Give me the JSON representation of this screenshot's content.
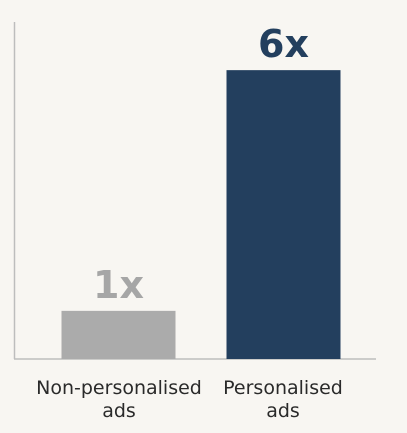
{
  "chart_data": {
    "type": "bar",
    "categories": [
      "Non-personalised ads",
      "Personalised ads"
    ],
    "category_lines": [
      [
        "Non-personalised",
        "ads"
      ],
      [
        "Personalised",
        "ads"
      ]
    ],
    "values": [
      1,
      6
    ],
    "data_labels": [
      "1x",
      "6x"
    ],
    "bar_colors": [
      "#ababab",
      "#233f5e"
    ],
    "label_colors": [
      "#a6a6a6",
      "#233f5e"
    ],
    "axis_color": "#bdbdbd",
    "title": "",
    "xlabel": "",
    "ylabel": "",
    "ylim": [
      0,
      7
    ],
    "grid": false,
    "legend": "none"
  }
}
